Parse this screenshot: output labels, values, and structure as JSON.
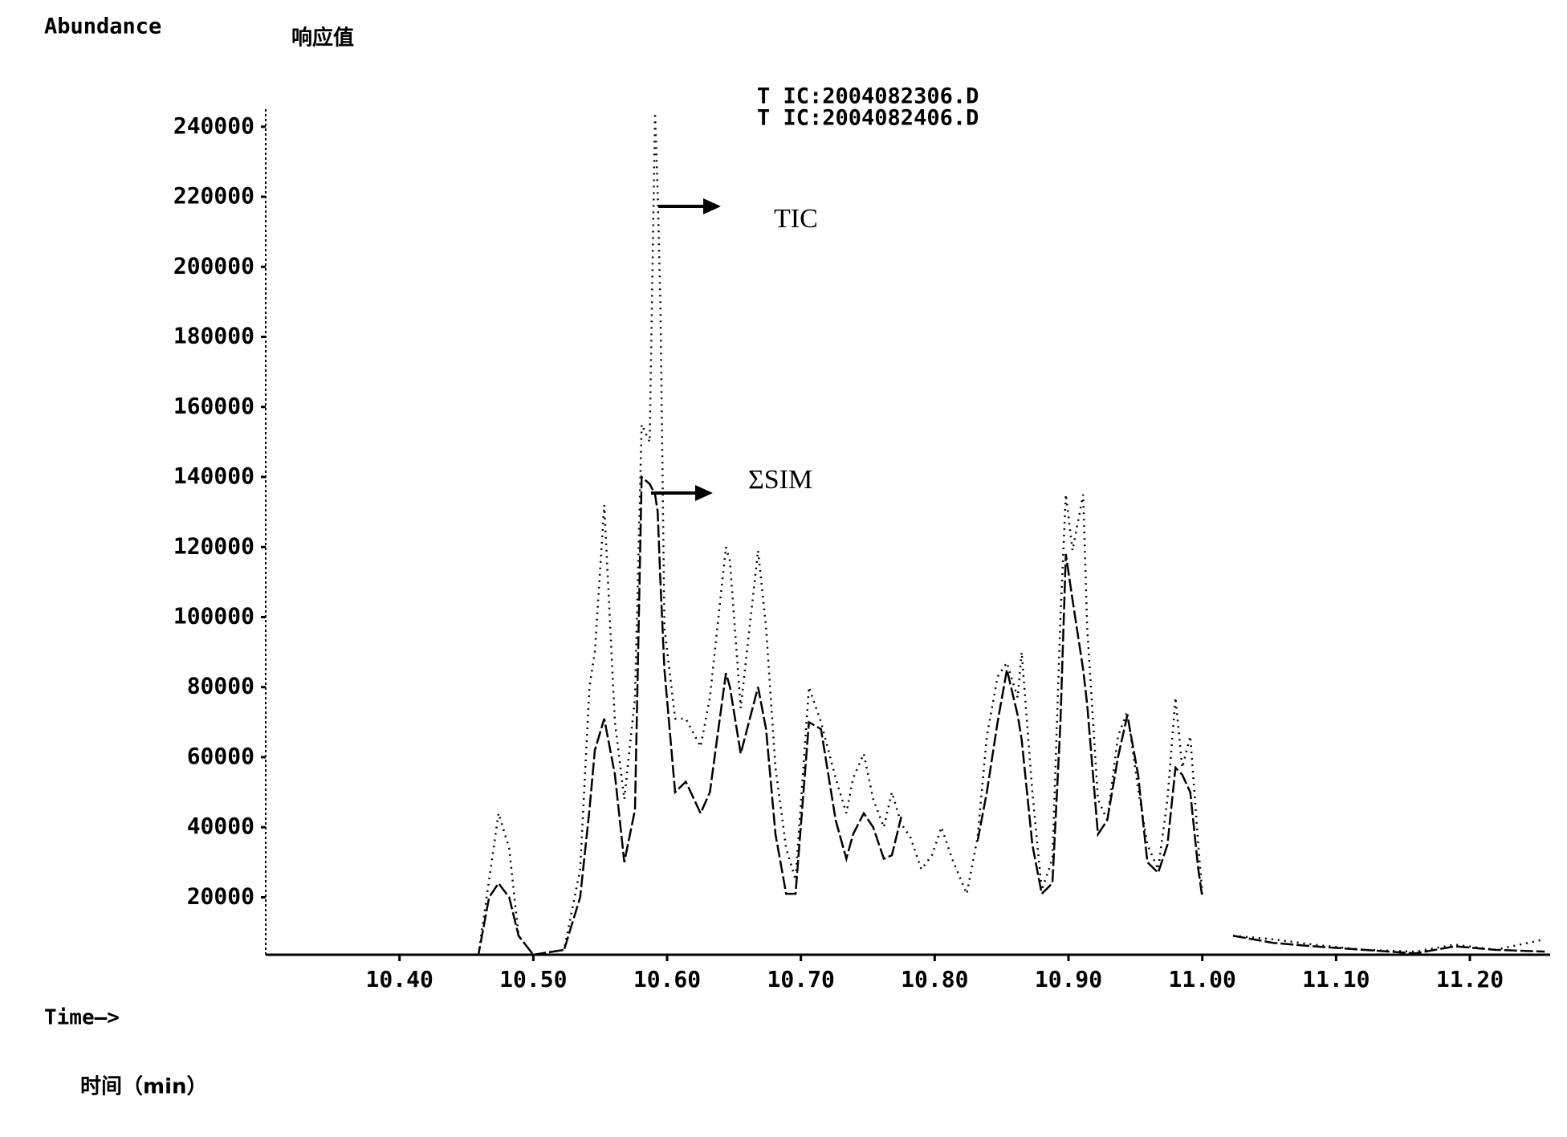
{
  "chart_data": {
    "type": "line",
    "ylabel": "Abundance",
    "ylabel_cn": "响应值",
    "xlabel": "Time—>",
    "xlabel_cn": "时间（min）",
    "file_labels": [
      "T IC:2004082306.D",
      "T IC:2004082406.D"
    ],
    "annotations": [
      "TIC",
      "ΣSIM"
    ],
    "xlim": [
      10.3,
      11.26
    ],
    "ylim": [
      3600,
      245000
    ],
    "xticks": [
      {
        "value": 10.4,
        "label": "10.40"
      },
      {
        "value": 10.5,
        "label": "10.50"
      },
      {
        "value": 10.6,
        "label": "10.60"
      },
      {
        "value": 10.7,
        "label": "10.70"
      },
      {
        "value": 10.8,
        "label": "10.80"
      },
      {
        "value": 10.9,
        "label": "10.90"
      },
      {
        "value": 11.0,
        "label": "11.00"
      },
      {
        "value": 11.1,
        "label": "11.10"
      },
      {
        "value": 11.2,
        "label": "11.20"
      }
    ],
    "yticks": [
      20000,
      40000,
      60000,
      80000,
      100000,
      120000,
      140000,
      160000,
      180000,
      200000,
      220000,
      240000
    ],
    "x": [
      10.3,
      10.459,
      10.467,
      10.474,
      10.482,
      10.489,
      10.5,
      10.523,
      10.535,
      10.542,
      10.546,
      10.553,
      10.561,
      10.568,
      10.576,
      10.581,
      10.587,
      10.591,
      10.593,
      10.595,
      10.598,
      10.606,
      10.614,
      10.625,
      10.632,
      10.644,
      10.647,
      10.655,
      10.668,
      10.674,
      10.681,
      10.689,
      10.696,
      10.706,
      10.715,
      10.726,
      10.734,
      10.739,
      10.747,
      10.754,
      10.762,
      10.768,
      10.775,
      10.782,
      10.79,
      10.798,
      10.805,
      10.813,
      10.824,
      10.832,
      10.839,
      10.847,
      10.854,
      10.862,
      10.865,
      10.873,
      10.88,
      10.888,
      10.894,
      10.898,
      10.903,
      10.911,
      10.914,
      10.922,
      10.929,
      10.937,
      10.944,
      10.952,
      10.959,
      10.967,
      10.974,
      10.98,
      10.985,
      10.991,
      10.997,
      11.0,
      11.01,
      11.023,
      11.053,
      11.083,
      11.121,
      11.159,
      11.189,
      11.219,
      11.256
    ],
    "series": [
      {
        "name": "TIC",
        "color": "#000000",
        "dash": "2 6",
        "values": [
          3600,
          3600,
          25000,
          44000,
          34000,
          9000,
          3600,
          5000,
          28000,
          80000,
          90000,
          132000,
          70000,
          48000,
          77000,
          155000,
          150000,
          244000,
          221000,
          189000,
          97000,
          71000,
          71000,
          63000,
          77000,
          120000,
          116000,
          74000,
          119000,
          97000,
          57000,
          34000,
          25000,
          80000,
          70000,
          54000,
          44000,
          54000,
          61000,
          48000,
          40000,
          50000,
          41000,
          37000,
          28000,
          32000,
          40000,
          31000,
          21000,
          37000,
          66000,
          83000,
          87000,
          77000,
          90000,
          50000,
          22000,
          31000,
          100000,
          135000,
          119000,
          135000,
          97000,
          48000,
          42000,
          66000,
          73000,
          51000,
          35000,
          28000,
          48000,
          77000,
          57000,
          66000,
          35000,
          21000,
          null,
          9000,
          8000,
          6500,
          5000,
          4500,
          6500,
          5000,
          8000
        ]
      },
      {
        "name": "ΣSIM",
        "color": "#000000",
        "dash": "16 4",
        "values": [
          3600,
          3600,
          20000,
          24000,
          20000,
          9000,
          3600,
          5000,
          20000,
          45000,
          62000,
          71000,
          55000,
          30000,
          45000,
          140000,
          138000,
          135000,
          130000,
          110000,
          85000,
          50000,
          53000,
          44000,
          50000,
          84000,
          80000,
          61000,
          80000,
          68000,
          38000,
          21000,
          21000,
          70000,
          68000,
          42000,
          31000,
          38000,
          44000,
          40000,
          31000,
          32000,
          43000,
          null,
          null,
          null,
          null,
          null,
          null,
          36000,
          50000,
          70000,
          85000,
          72000,
          65000,
          35000,
          21000,
          24000,
          70000,
          118000,
          105000,
          85000,
          75000,
          38000,
          42000,
          60000,
          72000,
          55000,
          30000,
          27000,
          35000,
          57000,
          55000,
          50000,
          28000,
          20000,
          null,
          9000,
          7000,
          6000,
          5000,
          4000,
          6000,
          5000,
          4500
        ]
      }
    ]
  }
}
